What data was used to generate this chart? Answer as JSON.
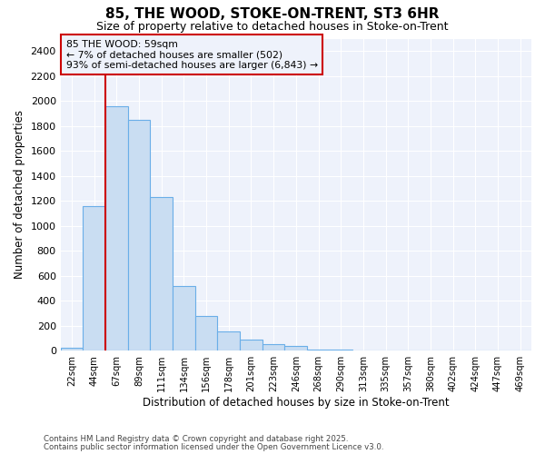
{
  "title1": "85, THE WOOD, STOKE-ON-TRENT, ST3 6HR",
  "title2": "Size of property relative to detached houses in Stoke-on-Trent",
  "xlabel": "Distribution of detached houses by size in Stoke-on-Trent",
  "ylabel": "Number of detached properties",
  "footer1": "Contains HM Land Registry data © Crown copyright and database right 2025.",
  "footer2": "Contains public sector information licensed under the Open Government Licence v3.0.",
  "bar_labels": [
    "22sqm",
    "44sqm",
    "67sqm",
    "89sqm",
    "111sqm",
    "134sqm",
    "156sqm",
    "178sqm",
    "201sqm",
    "223sqm",
    "246sqm",
    "268sqm",
    "290sqm",
    "313sqm",
    "335sqm",
    "357sqm",
    "380sqm",
    "402sqm",
    "424sqm",
    "447sqm",
    "469sqm"
  ],
  "bar_values": [
    22,
    1160,
    1960,
    1850,
    1230,
    515,
    275,
    155,
    90,
    50,
    35,
    12,
    8,
    5,
    4,
    3,
    2,
    2,
    1,
    1,
    1
  ],
  "bar_color": "#c9ddf2",
  "bar_edgecolor": "#6aaee8",
  "bg_color": "#ffffff",
  "plot_bg_color": "#eef2fb",
  "grid_color": "#ffffff",
  "vline_color": "#cc0000",
  "annotation_text": "85 THE WOOD: 59sqm\n← 7% of detached houses are smaller (502)\n93% of semi-detached houses are larger (6,843) →",
  "annotation_box_color": "#cc0000",
  "ylim_max": 2500,
  "yticks": [
    0,
    200,
    400,
    600,
    800,
    1000,
    1200,
    1400,
    1600,
    1800,
    2000,
    2200,
    2400
  ]
}
